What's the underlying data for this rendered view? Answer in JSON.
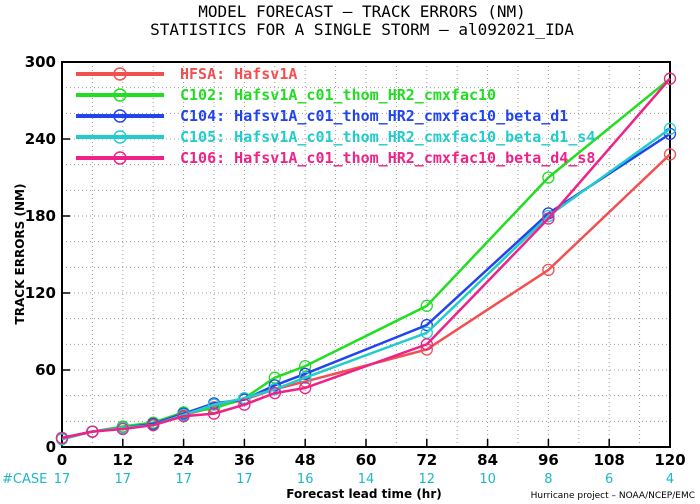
{
  "chart_data": {
    "type": "line",
    "title": "MODEL FORECAST – TRACK ERRORS (NM)",
    "subtitle": "STATISTICS FOR A SINGLE STORM – al092021_IDA",
    "xlabel": "Forecast lead time (hr)",
    "ylabel": "TRACK ERRORS (NM)",
    "xlim": [
      0,
      120
    ],
    "ylim": [
      0,
      300
    ],
    "xticks": [
      0,
      12,
      24,
      36,
      48,
      60,
      72,
      84,
      96,
      108,
      120
    ],
    "yticks": [
      0,
      60,
      120,
      180,
      240,
      300
    ],
    "grid": true,
    "legend_position": "top-left",
    "case_label": "#CASE",
    "case_counts": [
      "17",
      "17",
      "17",
      "17",
      "16",
      "14",
      "12",
      "10",
      "8",
      "6",
      "4"
    ],
    "credit": "Hurricane project – NOAA/NCEP/EMC",
    "series": [
      {
        "name": "HFSA: Hafsv1A",
        "color": "#f25050",
        "x": [
          0,
          6,
          12,
          18,
          24,
          30,
          36,
          42,
          48,
          72,
          96,
          120
        ],
        "y": [
          7,
          12,
          15,
          18,
          25,
          31,
          37,
          45,
          51,
          76,
          138,
          228
        ]
      },
      {
        "name": "C102: Hafsv1A_c01_thom_HR2_cmxfac10",
        "color": "#22dd22",
        "x": [
          0,
          6,
          12,
          18,
          24,
          30,
          36,
          42,
          48,
          72,
          96,
          120
        ],
        "y": [
          7,
          12,
          16,
          19,
          27,
          30,
          38,
          54,
          63,
          110,
          210,
          287
        ]
      },
      {
        "name": "C104: Hafsv1A_c01_thom_HR2_cmxfac10_beta_d1",
        "color": "#2244ee",
        "x": [
          0,
          6,
          12,
          18,
          24,
          30,
          36,
          42,
          48,
          72,
          96,
          120
        ],
        "y": [
          7,
          12,
          15,
          18,
          26,
          34,
          37,
          48,
          57,
          95,
          182,
          244
        ]
      },
      {
        "name": "C105: Hafsv1A_c01_thom_HR2_cmxfac10_beta_d1_s4",
        "color": "#22cccc",
        "x": [
          0,
          6,
          12,
          18,
          24,
          30,
          36,
          42,
          48,
          72,
          96,
          120
        ],
        "y": [
          6,
          12,
          15,
          17,
          25,
          33,
          38,
          45,
          54,
          89,
          180,
          248
        ]
      },
      {
        "name": "C106: Hafsv1A_c01_thom_HR2_cmxfac10_beta_d4_s8",
        "color": "#ee2288",
        "x": [
          0,
          6,
          12,
          18,
          24,
          30,
          36,
          42,
          48,
          72,
          96,
          120
        ],
        "y": [
          7,
          12,
          14,
          17,
          24,
          26,
          33,
          42,
          46,
          80,
          178,
          287
        ]
      }
    ]
  }
}
